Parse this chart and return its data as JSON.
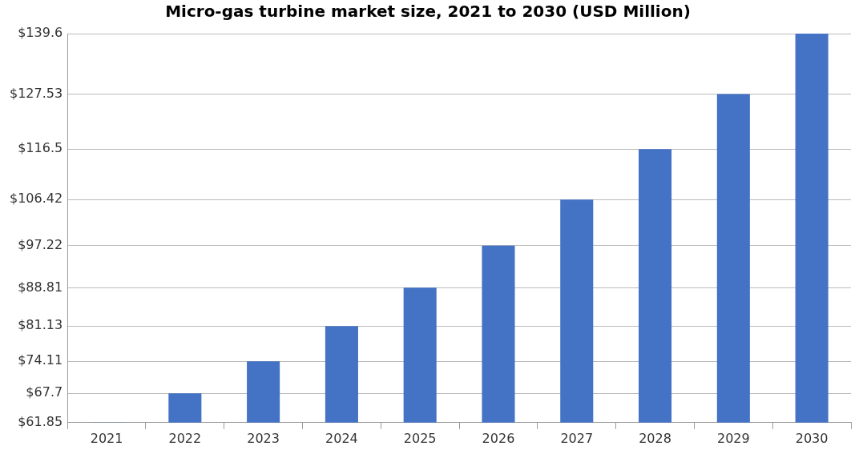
{
  "chart_data": {
    "type": "bar",
    "title": "Micro-gas turbine market size, 2021 to 2030 (USD Million)",
    "categories": [
      "2021",
      "2022",
      "2023",
      "2024",
      "2025",
      "2026",
      "2027",
      "2028",
      "2029",
      "2030"
    ],
    "values": [
      61.85,
      67.7,
      74.11,
      81.13,
      88.81,
      97.22,
      106.42,
      116.5,
      127.53,
      139.6
    ],
    "color": "#4472c4",
    "ylim": [
      61.85,
      139.6
    ],
    "yticks": [
      {
        "value": 61.85,
        "label": "$61.85"
      },
      {
        "value": 67.7,
        "label": "$67.7"
      },
      {
        "value": 74.11,
        "label": "$74.11"
      },
      {
        "value": 81.13,
        "label": "$81.13"
      },
      {
        "value": 88.81,
        "label": "$88.81"
      },
      {
        "value": 97.22,
        "label": "$97.22"
      },
      {
        "value": 106.42,
        "label": "$106.42"
      },
      {
        "value": 116.5,
        "label": "$116.5"
      },
      {
        "value": 127.53,
        "label": "$127.53"
      },
      {
        "value": 139.6,
        "label": "$139.6"
      }
    ],
    "grid": "y"
  }
}
